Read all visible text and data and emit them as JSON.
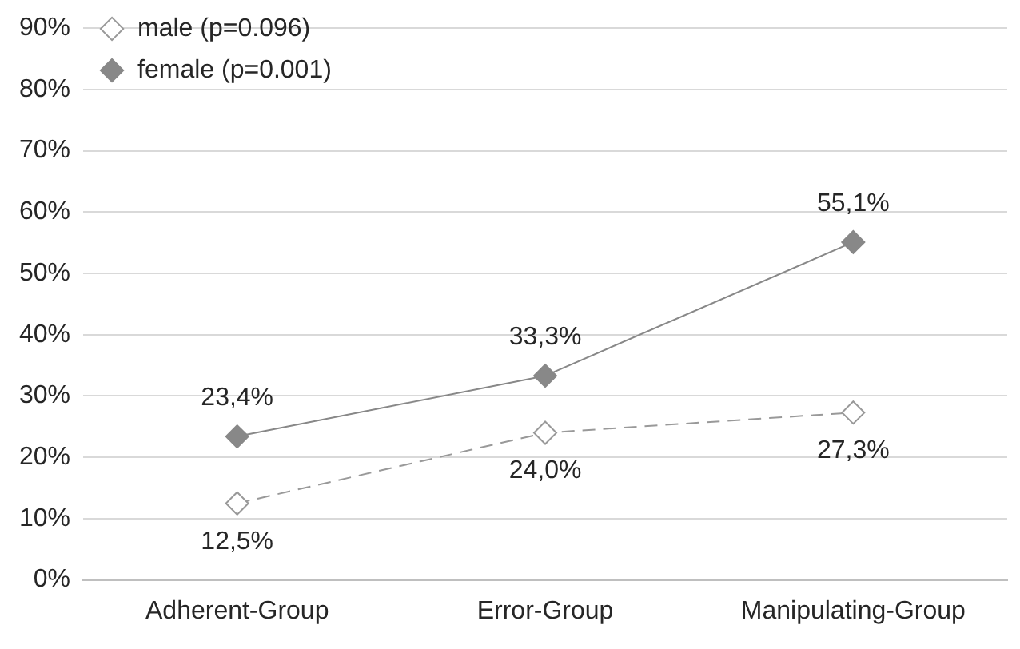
{
  "chart_data": {
    "type": "line",
    "categories": [
      "Adherent-Group",
      "Error-Group",
      "Manipulating-Group"
    ],
    "series": [
      {
        "name": "male (p=0.096)",
        "color": "#999999",
        "line_style": "dashed",
        "marker": "diamond",
        "values": [
          12.5,
          24.0,
          27.3
        ],
        "value_labels": [
          "12,5%",
          "24,0%",
          "27,3%"
        ]
      },
      {
        "name": "female (p=0.001)",
        "color": "#888888",
        "line_style": "solid",
        "marker": "diamond",
        "values": [
          23.4,
          33.3,
          55.1
        ],
        "value_labels": [
          "23,4%",
          "33,3%",
          "55,1%"
        ]
      }
    ],
    "ylim": [
      0,
      90
    ],
    "yticks": [
      {
        "value": 0,
        "label": "0%"
      },
      {
        "value": 10,
        "label": "10%"
      },
      {
        "value": 20,
        "label": "20%"
      },
      {
        "value": 30,
        "label": "30%"
      },
      {
        "value": 40,
        "label": "40%"
      },
      {
        "value": 50,
        "label": "50%"
      },
      {
        "value": 60,
        "label": "60%"
      },
      {
        "value": 70,
        "label": "70%"
      },
      {
        "value": 80,
        "label": "80%"
      },
      {
        "value": 90,
        "label": "90%"
      }
    ],
    "grid": "y",
    "legend": "top left"
  }
}
